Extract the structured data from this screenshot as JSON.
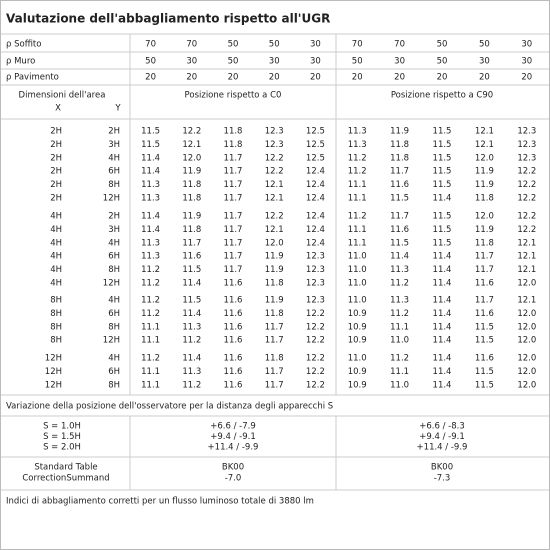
{
  "title": "Valutazione dell'abbagliamento rispetto all'UGR",
  "reflectance": [
    {
      "label": "ρ Soffito",
      "values": [
        70,
        70,
        50,
        50,
        30,
        70,
        70,
        50,
        50,
        30
      ]
    },
    {
      "label": "ρ Muro",
      "values": [
        50,
        30,
        50,
        30,
        30,
        50,
        30,
        50,
        30,
        30
      ]
    },
    {
      "label": "ρ Pavimento",
      "values": [
        20,
        20,
        20,
        20,
        20,
        20,
        20,
        20,
        20,
        20
      ]
    }
  ],
  "header": {
    "area": "Dimensioni dell'area",
    "x": "X",
    "y": "Y",
    "c0": "Posizione rispetto a C0",
    "c90": "Posizione rispetto a C90"
  },
  "groups": [
    [
      {
        "x": "2H",
        "y": "2H",
        "values": [
          "11.5",
          "12.2",
          "11.8",
          "12.3",
          "12.5",
          "11.3",
          "11.9",
          "11.5",
          "12.1",
          "12.3"
        ]
      },
      {
        "x": "2H",
        "y": "3H",
        "values": [
          "11.5",
          "12.1",
          "11.8",
          "12.3",
          "12.5",
          "11.3",
          "11.8",
          "11.5",
          "12.1",
          "12.3"
        ]
      },
      {
        "x": "2H",
        "y": "4H",
        "values": [
          "11.4",
          "12.0",
          "11.7",
          "12.2",
          "12.5",
          "11.2",
          "11.8",
          "11.5",
          "12.0",
          "12.3"
        ]
      },
      {
        "x": "2H",
        "y": "6H",
        "values": [
          "11.4",
          "11.9",
          "11.7",
          "12.2",
          "12.4",
          "11.2",
          "11.7",
          "11.5",
          "11.9",
          "12.2"
        ]
      },
      {
        "x": "2H",
        "y": "8H",
        "values": [
          "11.3",
          "11.8",
          "11.7",
          "12.1",
          "12.4",
          "11.1",
          "11.6",
          "11.5",
          "11.9",
          "12.2"
        ]
      },
      {
        "x": "2H",
        "y": "12H",
        "values": [
          "11.3",
          "11.8",
          "11.7",
          "12.1",
          "12.4",
          "11.1",
          "11.5",
          "11.4",
          "11.8",
          "12.2"
        ]
      }
    ],
    [
      {
        "x": "4H",
        "y": "2H",
        "values": [
          "11.4",
          "11.9",
          "11.7",
          "12.2",
          "12.4",
          "11.2",
          "11.7",
          "11.5",
          "12.0",
          "12.2"
        ]
      },
      {
        "x": "4H",
        "y": "3H",
        "values": [
          "11.4",
          "11.8",
          "11.7",
          "12.1",
          "12.4",
          "11.1",
          "11.6",
          "11.5",
          "11.9",
          "12.2"
        ]
      },
      {
        "x": "4H",
        "y": "4H",
        "values": [
          "11.3",
          "11.7",
          "11.7",
          "12.0",
          "12.4",
          "11.1",
          "11.5",
          "11.5",
          "11.8",
          "12.1"
        ]
      },
      {
        "x": "4H",
        "y": "6H",
        "values": [
          "11.3",
          "11.6",
          "11.7",
          "11.9",
          "12.3",
          "11.0",
          "11.4",
          "11.4",
          "11.7",
          "12.1"
        ]
      },
      {
        "x": "4H",
        "y": "8H",
        "values": [
          "11.2",
          "11.5",
          "11.7",
          "11.9",
          "12.3",
          "11.0",
          "11.3",
          "11.4",
          "11.7",
          "12.1"
        ]
      },
      {
        "x": "4H",
        "y": "12H",
        "values": [
          "11.2",
          "11.4",
          "11.6",
          "11.8",
          "12.3",
          "11.0",
          "11.2",
          "11.4",
          "11.6",
          "12.0"
        ]
      }
    ],
    [
      {
        "x": "8H",
        "y": "4H",
        "values": [
          "11.2",
          "11.5",
          "11.6",
          "11.9",
          "12.3",
          "11.0",
          "11.3",
          "11.4",
          "11.7",
          "12.1"
        ]
      },
      {
        "x": "8H",
        "y": "6H",
        "values": [
          "11.2",
          "11.4",
          "11.6",
          "11.8",
          "12.2",
          "10.9",
          "11.2",
          "11.4",
          "11.6",
          "12.0"
        ]
      },
      {
        "x": "8H",
        "y": "8H",
        "values": [
          "11.1",
          "11.3",
          "11.6",
          "11.7",
          "12.2",
          "10.9",
          "11.1",
          "11.4",
          "11.5",
          "12.0"
        ]
      },
      {
        "x": "8H",
        "y": "12H",
        "values": [
          "11.1",
          "11.2",
          "11.6",
          "11.7",
          "12.2",
          "10.9",
          "11.0",
          "11.4",
          "11.5",
          "12.0"
        ]
      }
    ],
    [
      {
        "x": "12H",
        "y": "4H",
        "values": [
          "11.2",
          "11.4",
          "11.6",
          "11.8",
          "12.2",
          "11.0",
          "11.2",
          "11.4",
          "11.6",
          "12.0"
        ]
      },
      {
        "x": "12H",
        "y": "6H",
        "values": [
          "11.1",
          "11.3",
          "11.6",
          "11.7",
          "12.2",
          "10.9",
          "11.1",
          "11.4",
          "11.5",
          "12.0"
        ]
      },
      {
        "x": "12H",
        "y": "8H",
        "values": [
          "11.1",
          "11.2",
          "11.6",
          "11.7",
          "12.2",
          "10.9",
          "11.0",
          "11.4",
          "11.5",
          "12.0"
        ]
      }
    ]
  ],
  "variation": {
    "note": "Variazione della posizione dell'osservatore per la distanza degli apparecchi S",
    "rows": [
      {
        "label": "S = 1.0H",
        "c0": "+6.6 / -7.9",
        "c90": "+6.6 / -8.3"
      },
      {
        "label": "S = 1.5H",
        "c0": "+9.4 / -9.1",
        "c90": "+9.4 / -9.1"
      },
      {
        "label": "S = 2.0H",
        "c0": "+11.4 / -9.9",
        "c90": "+11.4 / -9.9"
      }
    ]
  },
  "correction": {
    "labels": [
      "Standard Table",
      "CorrectionSummand"
    ],
    "c0": [
      "BK00",
      "-7.0"
    ],
    "c90": [
      "BK00",
      "-7.3"
    ]
  },
  "footer": "Indici di abbagliamento corretti per un flusso luminoso totale di 3880 lm"
}
